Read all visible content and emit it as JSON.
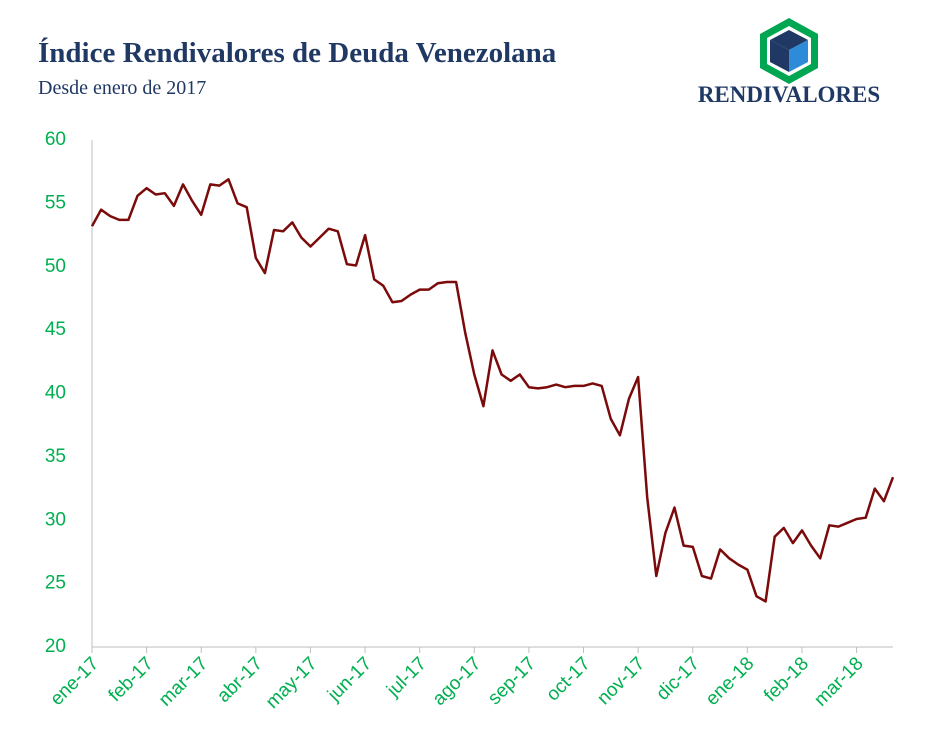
{
  "chart_data": {
    "type": "line",
    "title": "Índice Rendivalores de Deuda Venezolana",
    "subtitle": "Desde enero de 2017",
    "brand": "RENDIVALORES",
    "categories": [
      "ene-17",
      null,
      null,
      null,
      null,
      null,
      "feb-17",
      null,
      null,
      null,
      null,
      null,
      "mar-17",
      null,
      null,
      null,
      null,
      null,
      "abr-17",
      null,
      null,
      null,
      null,
      null,
      "may-17",
      null,
      null,
      null,
      null,
      null,
      "jun-17",
      null,
      null,
      null,
      null,
      null,
      "jul-17",
      null,
      null,
      null,
      null,
      null,
      "ago-17",
      null,
      null,
      null,
      null,
      null,
      "sep-17",
      null,
      null,
      null,
      null,
      null,
      "oct-17",
      null,
      null,
      null,
      null,
      null,
      "nov-17",
      null,
      null,
      null,
      null,
      null,
      "dic-17",
      null,
      null,
      null,
      null,
      null,
      "ene-18",
      null,
      null,
      null,
      null,
      null,
      "feb-18",
      null,
      null,
      null,
      null,
      null,
      "mar-18",
      null,
      null,
      null,
      null
    ],
    "values": [
      53.2,
      54.5,
      54.0,
      53.7,
      53.7,
      55.6,
      56.2,
      55.7,
      55.8,
      54.8,
      56.5,
      55.2,
      54.1,
      56.5,
      56.4,
      56.9,
      55.0,
      54.7,
      50.7,
      49.5,
      52.9,
      52.8,
      53.5,
      52.3,
      51.6,
      52.3,
      53.0,
      52.8,
      50.2,
      50.1,
      52.5,
      49.0,
      48.5,
      47.2,
      47.3,
      47.8,
      48.2,
      48.2,
      48.7,
      48.8,
      48.8,
      44.8,
      41.5,
      39.0,
      43.4,
      41.5,
      41.0,
      41.5,
      40.5,
      40.4,
      40.5,
      40.7,
      40.5,
      40.6,
      40.6,
      40.8,
      40.6,
      38.0,
      36.7,
      39.6,
      41.3,
      31.8,
      25.6,
      29.0,
      31.0,
      28.0,
      27.9,
      25.6,
      25.4,
      27.7,
      27.0,
      26.5,
      26.1,
      24.0,
      23.6,
      28.7,
      29.4,
      28.2,
      29.2,
      28.0,
      27.0,
      29.6,
      29.5,
      29.8,
      30.1,
      30.2,
      32.5,
      31.5,
      33.4
    ],
    "color": "#7b0a0a",
    "ylim": [
      20,
      60
    ],
    "yticks": [
      20,
      25,
      30,
      35,
      40,
      45,
      50,
      55,
      60
    ],
    "grid": false
  }
}
